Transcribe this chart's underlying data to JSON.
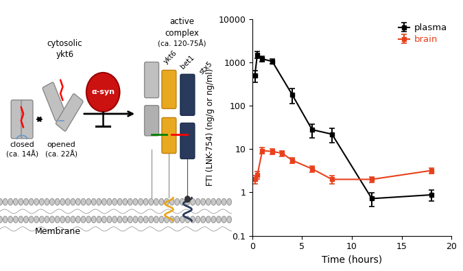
{
  "plasma_x": [
    0.25,
    0.5,
    1,
    2,
    4,
    6,
    8,
    12,
    18
  ],
  "plasma_y": [
    500,
    1500,
    1200,
    1050,
    180,
    28,
    22,
    0.72,
    0.88
  ],
  "plasma_yerr_low": [
    150,
    250,
    180,
    140,
    70,
    10,
    8,
    0.25,
    0.25
  ],
  "plasma_yerr_high": [
    150,
    250,
    180,
    140,
    70,
    10,
    8,
    0.25,
    0.25
  ],
  "brain_x": [
    0.25,
    0.5,
    1,
    2,
    3,
    4,
    6,
    8,
    12,
    18
  ],
  "brain_y": [
    2.0,
    2.5,
    9.2,
    8.8,
    8.0,
    5.5,
    3.5,
    2.0,
    2.0,
    3.2
  ],
  "brain_yerr_low": [
    0.4,
    0.5,
    1.5,
    1.2,
    1.2,
    0.8,
    0.6,
    0.4,
    0.3,
    0.5
  ],
  "brain_yerr_high": [
    0.4,
    0.5,
    1.5,
    1.2,
    1.2,
    0.8,
    0.6,
    0.4,
    0.3,
    0.5
  ],
  "plasma_color": "#000000",
  "brain_color": "#e8401c",
  "xlabel": "Time (hours)",
  "ylabel": "FTI (LNK-754) (ng/g or ng/ml)",
  "ylim_low": 0.1,
  "ylim_high": 10000,
  "xlim_low": 0,
  "xlim_high": 20,
  "xticks": [
    0,
    5,
    10,
    15,
    20
  ],
  "background_color": "#ffffff",
  "legend_plasma": "plasma",
  "legend_brain": "brain",
  "cyl_gray": "#c0c0c0",
  "cyl_gray_edge": "#888888",
  "cyl_yellow": "#e8a820",
  "cyl_yellow_edge": "#c08010",
  "cyl_navy": "#2a3a5c",
  "cyl_navy_edge": "#1a2a4c",
  "membrane_fill": "#c8c8c8",
  "membrane_edge": "#888888"
}
